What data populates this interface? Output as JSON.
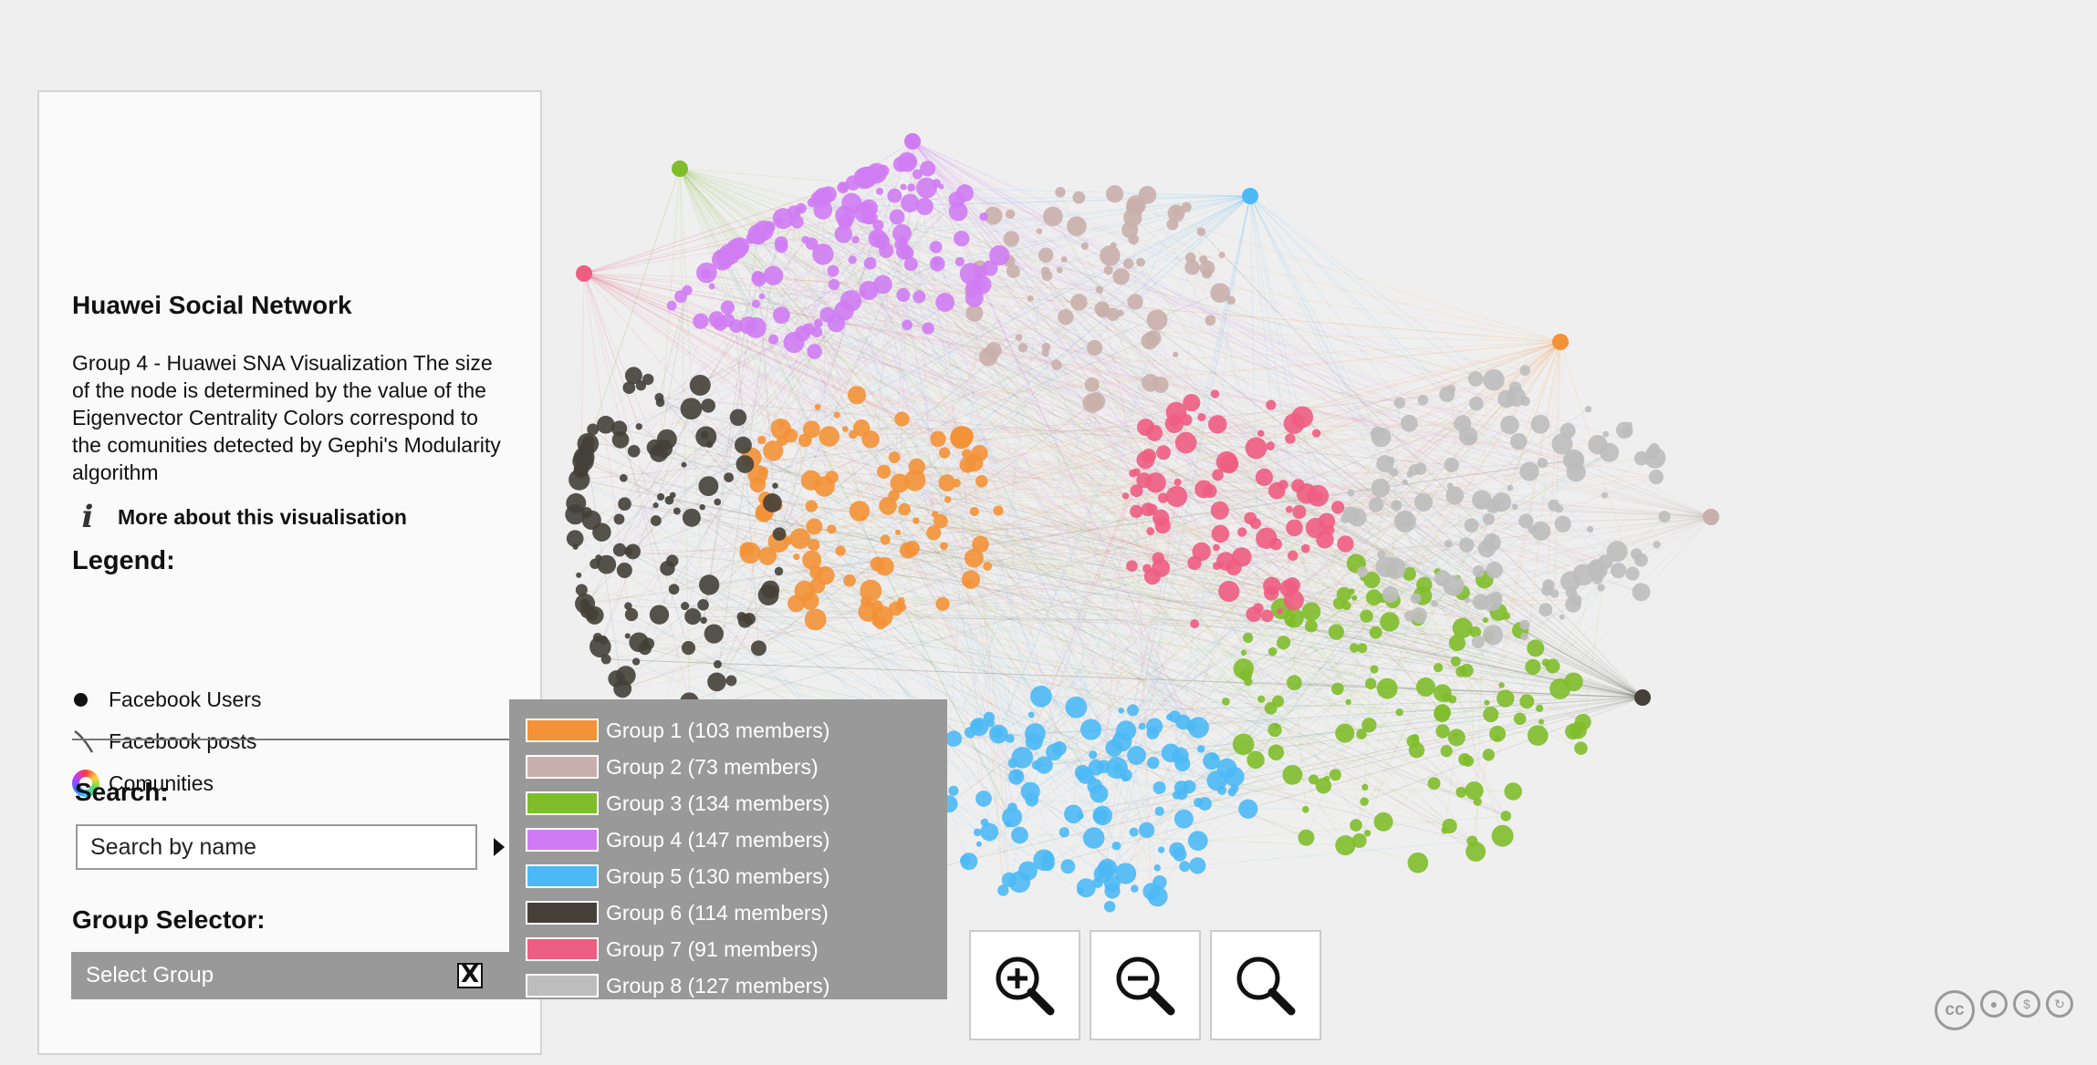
{
  "panel": {
    "title": "Huawei Social Network",
    "description": "Group 4 - Huawei SNA Visualization The size of the node is determined by the value of the Eigenvector Centrality Colors correspond to the comunities detected by Gephi's Modularity algorithm",
    "more_link": "More about this visualisation",
    "legend_title": "Legend:",
    "legend": {
      "nodes": "Facebook Users",
      "edges": "Facebook posts",
      "colors": "Comunities"
    },
    "search_title": "Search:",
    "search_placeholder": "Search by name",
    "group_selector_title": "Group Selector:"
  },
  "group_select": {
    "label": "Select Group",
    "clear": "X",
    "options": [
      {
        "label": "Group 1 (103 members)",
        "color": "#f39237"
      },
      {
        "label": "Group 2 (73 members)",
        "color": "#c9afab"
      },
      {
        "label": "Group 3 (134 members)",
        "color": "#7fbd2b"
      },
      {
        "label": "Group 4 (147 members)",
        "color": "#cf7cf3"
      },
      {
        "label": "Group 5 (130 members)",
        "color": "#4cb9f5"
      },
      {
        "label": "Group 6 (114 members)",
        "color": "#444039"
      },
      {
        "label": "Group 7 (91 members)",
        "color": "#ee5d82"
      },
      {
        "label": "Group 8 (127 members)",
        "color": "#bdbdbd"
      }
    ]
  },
  "zoom": {
    "zoom_in": "zoom-in-icon",
    "zoom_out": "zoom-out-icon",
    "reset": "magnifier-icon"
  },
  "license": {
    "cc": "cc",
    "icons": [
      "by-icon",
      "nc-icon",
      "sa-icon"
    ]
  }
}
